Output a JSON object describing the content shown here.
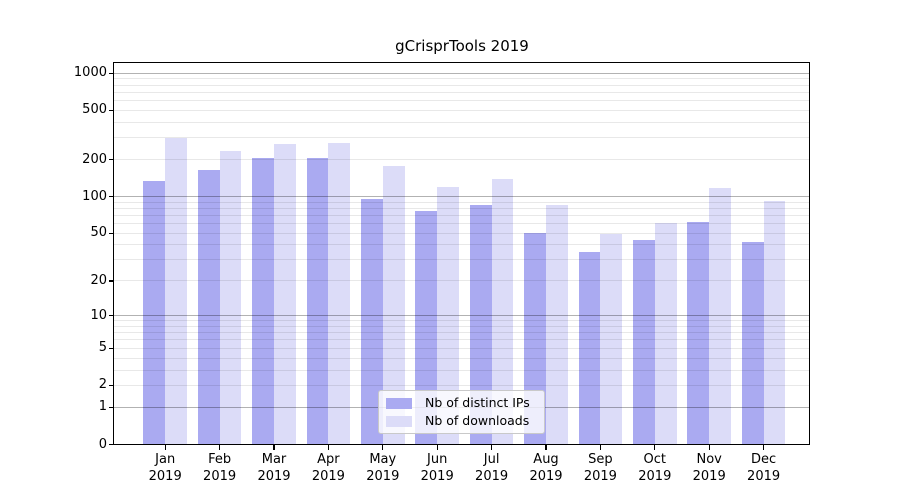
{
  "chart_data": {
    "type": "bar",
    "title": "gCrisprTools 2019",
    "categories": [
      "Jan 2019",
      "Feb 2019",
      "Mar 2019",
      "Apr 2019",
      "May 2019",
      "Jun 2019",
      "Jul 2019",
      "Aug 2019",
      "Sep 2019",
      "Oct 2019",
      "Nov 2019",
      "Dec 2019"
    ],
    "x_tick_month": [
      "Jan",
      "Feb",
      "Mar",
      "Apr",
      "May",
      "Jun",
      "Jul",
      "Aug",
      "Sep",
      "Oct",
      "Nov",
      "Dec"
    ],
    "x_tick_year": "2019",
    "series": [
      {
        "name": "Nb of distinct IPs",
        "color": "#aaaaf1",
        "values": [
          135,
          163,
          205,
          206,
          96,
          76,
          85,
          50,
          35,
          44,
          62,
          42
        ]
      },
      {
        "name": "Nb of downloads",
        "color": "#dcdcf8",
        "values": [
          300,
          235,
          268,
          273,
          176,
          119,
          140,
          85,
          49,
          61,
          118,
          92
        ]
      }
    ],
    "y_scale": "log10(1+x)",
    "y_ticks": [
      1000,
      500,
      200,
      100,
      50,
      20,
      10,
      5,
      2,
      1,
      0
    ],
    "y_major_grid": [
      1,
      10,
      100,
      1000
    ],
    "y_minor_grid": [
      2,
      3,
      4,
      5,
      6,
      7,
      8,
      9,
      20,
      30,
      40,
      50,
      60,
      70,
      80,
      90,
      200,
      300,
      400,
      500,
      600,
      700,
      800,
      900
    ],
    "ylim": [
      0,
      1220
    ],
    "grid": "horizontal",
    "legend": {
      "position": "inside-bottom-center",
      "entries": [
        "Nb of distinct IPs",
        "Nb of downloads"
      ]
    }
  },
  "colors": {
    "bar_distinct_ips": "#aaaaf1",
    "bar_downloads": "#dcdcf8",
    "axis": "#000000",
    "legend_border": "#c9c9c9",
    "background": "#ffffff",
    "text": "#000000"
  }
}
